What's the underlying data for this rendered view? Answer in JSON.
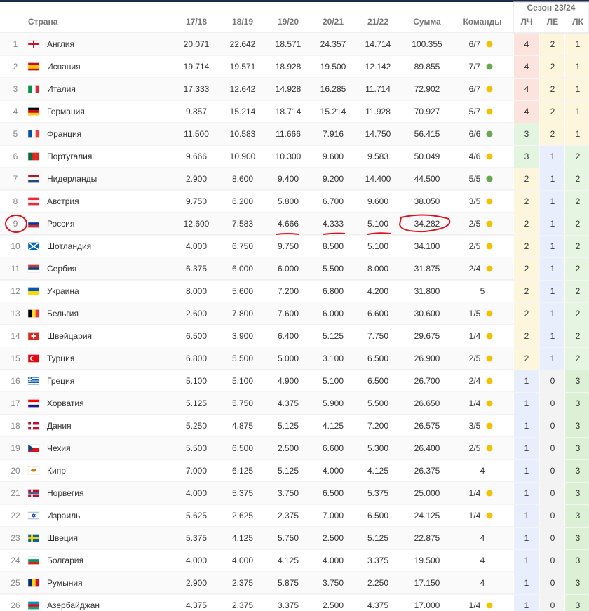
{
  "header": {
    "season": "Сезон 23/24",
    "columns": [
      "Страна",
      "17/18",
      "18/19",
      "19/20",
      "20/21",
      "21/22",
      "Сумма",
      "Команды",
      "ЛЧ",
      "ЛЕ",
      "ЛК"
    ]
  },
  "table": {
    "rows": [
      {
        "cells": [
          1,
          "Англия",
          "20.071",
          "22.642",
          "18.571",
          "24.357",
          "14.714",
          "100.355",
          "6/7",
          4,
          2,
          1
        ],
        "dot": "#f2c200"
      },
      {
        "cells": [
          2,
          "Испания",
          "19.714",
          "19.571",
          "18.928",
          "19.500",
          "12.142",
          "89.855",
          "7/7",
          4,
          2,
          1
        ],
        "dot": "#6aa84f"
      },
      {
        "cells": [
          3,
          "Италия",
          "17.333",
          "12.642",
          "14.928",
          "16.285",
          "11.714",
          "72.902",
          "6/7",
          4,
          2,
          1
        ],
        "dot": "#f2c200"
      },
      {
        "cells": [
          4,
          "Германия",
          "9.857",
          "15.214",
          "18.714",
          "15.214",
          "11.928",
          "70.927",
          "5/7",
          4,
          2,
          1
        ],
        "dot": "#f2c200"
      },
      {
        "cells": [
          5,
          "Франция",
          "11.500",
          "10.583",
          "11.666",
          "7.916",
          "14.750",
          "56.415",
          "6/6",
          3,
          2,
          1
        ],
        "dot": "#6aa84f"
      },
      {
        "cells": [
          6,
          "Португалия",
          "9.666",
          "10.900",
          "10.300",
          "9.600",
          "9.583",
          "50.049",
          "4/6",
          3,
          1,
          2
        ],
        "dot": "#f2c200"
      },
      {
        "cells": [
          7,
          "Нидерланды",
          "2.900",
          "8.600",
          "9.400",
          "9.200",
          "14.400",
          "44.500",
          "5/5",
          2,
          1,
          2
        ],
        "dot": "#6aa84f"
      },
      {
        "cells": [
          8,
          "Австрия",
          "9.750",
          "6.200",
          "5.800",
          "6.700",
          "9.600",
          "38.050",
          "3/5",
          2,
          1,
          2
        ],
        "dot": "#f2c200"
      },
      {
        "cells": [
          9,
          "Россия",
          "12.600",
          "7.583",
          "4.666",
          "4.333",
          "5.100",
          "34.282",
          "2/5",
          2,
          1,
          2
        ],
        "dot": "#f2c200"
      },
      {
        "cells": [
          10,
          "Шотландия",
          "4.000",
          "6.750",
          "9.750",
          "8.500",
          "5.100",
          "34.100",
          "2/5",
          2,
          1,
          2
        ],
        "dot": "#f2c200"
      },
      {
        "cells": [
          11,
          "Сербия",
          "6.375",
          "6.000",
          "6.000",
          "5.500",
          "8.000",
          "31.875",
          "2/4",
          2,
          1,
          2
        ],
        "dot": "#f2c200"
      },
      {
        "cells": [
          12,
          "Украина",
          "8.000",
          "5.600",
          "7.200",
          "6.800",
          "4.200",
          "31.800",
          5,
          2,
          1,
          2
        ]
      },
      {
        "cells": [
          13,
          "Бельгия",
          "2.600",
          "7.800",
          "7.600",
          "6.000",
          "6.600",
          "30.600",
          "1/5",
          2,
          1,
          2
        ],
        "dot": "#f2c200"
      },
      {
        "cells": [
          14,
          "Швейцария",
          "6.500",
          "3.900",
          "6.400",
          "5.125",
          "7.750",
          "29.675",
          "1/4",
          2,
          1,
          2
        ],
        "dot": "#f2c200"
      },
      {
        "cells": [
          15,
          "Турция",
          "6.800",
          "5.500",
          "5.000",
          "3.100",
          "6.500",
          "26.900",
          "2/5",
          2,
          1,
          2
        ],
        "dot": "#f2c200"
      },
      {
        "cells": [
          16,
          "Греция",
          "5.100",
          "5.100",
          "4.900",
          "5.100",
          "6.500",
          "26.700",
          "2/4",
          1,
          0,
          3
        ],
        "dot": "#f2c200"
      },
      {
        "cells": [
          17,
          "Хорватия",
          "5.125",
          "5.750",
          "4.375",
          "5.900",
          "5.500",
          "26.650",
          "1/4",
          1,
          0,
          3
        ],
        "dot": "#f2c200"
      },
      {
        "cells": [
          18,
          "Дания",
          "5.250",
          "4.875",
          "5.125",
          "4.125",
          "7.200",
          "26.575",
          "3/5",
          1,
          0,
          3
        ],
        "dot": "#f2c200"
      },
      {
        "cells": [
          19,
          "Чехия",
          "5.500",
          "6.500",
          "2.500",
          "6.600",
          "5.300",
          "26.400",
          "2/5",
          1,
          0,
          3
        ],
        "dot": "#f2c200"
      },
      {
        "cells": [
          20,
          "Кипр",
          "7.000",
          "6.125",
          "5.125",
          "4.000",
          "4.125",
          "26.375",
          4,
          1,
          0,
          3
        ]
      },
      {
        "cells": [
          21,
          "Норвегия",
          "4.000",
          "5.375",
          "3.750",
          "6.500",
          "5.375",
          "25.000",
          "1/4",
          1,
          0,
          3
        ],
        "dot": "#f2c200"
      },
      {
        "cells": [
          22,
          "Израиль",
          "5.625",
          "2.625",
          "2.375",
          "7.000",
          "6.500",
          "24.125",
          "1/4",
          1,
          0,
          3
        ],
        "dot": "#f2c200"
      },
      {
        "cells": [
          23,
          "Швеция",
          "5.375",
          "4.125",
          "5.750",
          "2.500",
          "5.125",
          "22.875",
          4,
          1,
          0,
          3
        ]
      },
      {
        "cells": [
          24,
          "Болгария",
          "4.000",
          "4.000",
          "4.125",
          "4.000",
          "3.375",
          "19.500",
          4,
          1,
          0,
          3
        ]
      },
      {
        "cells": [
          25,
          "Румыния",
          "2.900",
          "2.375",
          "5.875",
          "3.750",
          "2.250",
          "17.150",
          4,
          1,
          0,
          3
        ]
      },
      {
        "cells": [
          26,
          "Азербайджан",
          "4.375",
          "2.375",
          "3.375",
          "2.500",
          "4.375",
          "17.000",
          "1/4",
          1,
          0,
          3
        ],
        "dot": "#f2c200"
      }
    ]
  }
}
